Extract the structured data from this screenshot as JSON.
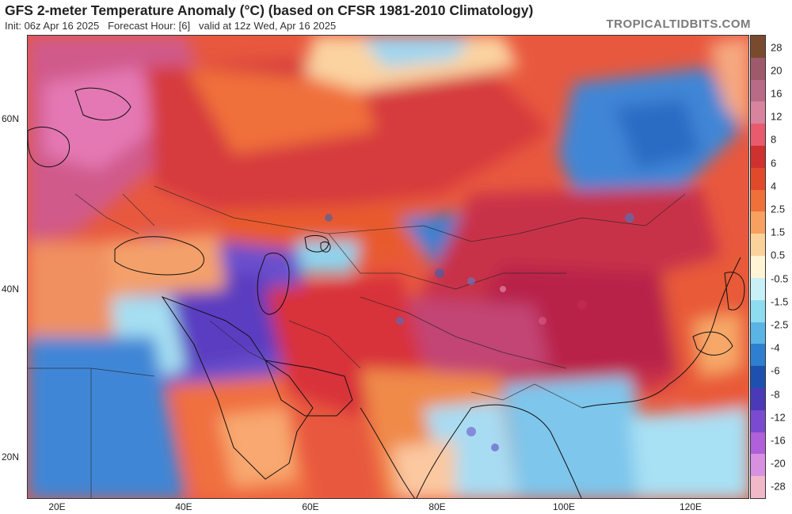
{
  "header": {
    "title": "GFS 2-meter Temperature Anomaly (°C) (based on CFSR 1981-2010 Climatology)",
    "subtitle": "Init: 06z Apr 16 2025   Forecast Hour: [6]   valid at 12z Wed, Apr 16 2025",
    "brand": "TROPICALTIDBITS.COM"
  },
  "axes": {
    "lat_labels": [
      "60N",
      "40N",
      "20N"
    ],
    "lon_labels": [
      "20E",
      "40E",
      "60E",
      "80E",
      "100E",
      "120E"
    ]
  },
  "colorbar": {
    "labels": [
      "28",
      "20",
      "16",
      "12",
      "8",
      "6",
      "4",
      "2.5",
      "1.5",
      "0.5",
      "-0.5",
      "-1.5",
      "-2.5",
      "-4",
      "-6",
      "-8",
      "-12",
      "-16",
      "-20",
      "-28"
    ],
    "colors": [
      "#7a4a2e",
      "#9e5a6a",
      "#b86a86",
      "#d8849e",
      "#e85a6e",
      "#cf3030",
      "#e04a2a",
      "#f0703a",
      "#f7a060",
      "#fbd39a",
      "#fff4d6",
      "#c8f0f6",
      "#8edcf0",
      "#5ab4e6",
      "#2f7fd0",
      "#1e50b0",
      "#4a3ab8",
      "#7a4ad0",
      "#b060d8",
      "#d890e0",
      "#f0b8c8"
    ]
  },
  "map": {
    "colors": {
      "warm_red": "#d8383a",
      "hot_red": "#b8223c",
      "orange": "#f07a3a",
      "light_orange": "#f8b070",
      "pink": "#e070a8",
      "magenta": "#c8507e",
      "cool_blue": "#3a8ad8",
      "light_blue": "#a6ddf2",
      "purple": "#6a48c8",
      "neutral": "#fdf0d8"
    }
  }
}
